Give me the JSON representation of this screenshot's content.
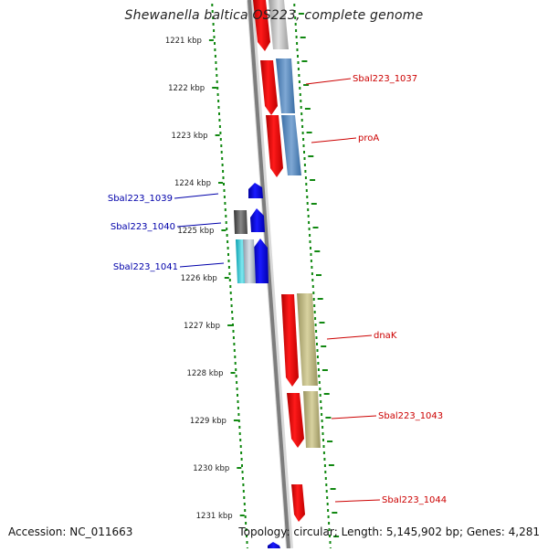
{
  "title": "Shewanella baltica OS223, complete genome",
  "footer": {
    "accession": "Accession: NC_011663",
    "summary": "Topology: circular; Length: 5,145,902 bp; Genes: 4,281"
  },
  "colors": {
    "forward_gene": "#ff0000",
    "reverse_gene": "#0000ff",
    "label_forward": "#cc0000",
    "label_reverse": "#0000aa",
    "tick": "#118811",
    "backbone": "#888888"
  },
  "scale_labels": [
    "1221 kbp",
    "1222 kbp",
    "1223 kbp",
    "1224 kbp",
    "1225 kbp",
    "1226 kbp",
    "1227 kbp",
    "1228 kbp",
    "1229 kbp",
    "1230 kbp",
    "1231 kbp"
  ],
  "gene_labels_right": [
    "Sbal223_1037",
    "proA",
    "dnaK",
    "Sbal223_1043",
    "Sbal223_1044"
  ],
  "gene_labels_left": [
    "Sbal223_1039",
    "Sbal223_1040",
    "Sbal223_1041"
  ]
}
